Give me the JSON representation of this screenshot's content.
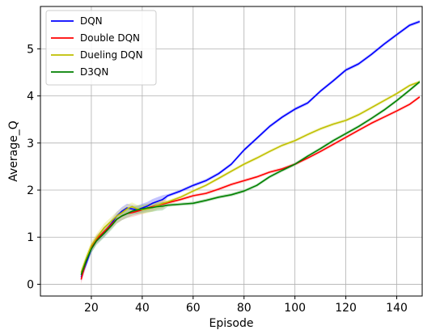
{
  "chart_data": {
    "type": "line",
    "title": "",
    "xlabel": "Episode",
    "ylabel": "Average_Q",
    "xlim": [
      0,
      150
    ],
    "ylim": [
      -0.25,
      5.9
    ],
    "xticks": [
      20,
      40,
      60,
      80,
      100,
      120,
      140
    ],
    "yticks": [
      0,
      1,
      2,
      3,
      4,
      5
    ],
    "grid": true,
    "legend_position": "top-left",
    "series": [
      {
        "name": "DQN",
        "color": "#0000ff",
        "band_color": "#7d7dff",
        "x": [
          16,
          18,
          20,
          22,
          25,
          28,
          30,
          32,
          34,
          36,
          38,
          40,
          42,
          44,
          46,
          48,
          50,
          55,
          60,
          65,
          70,
          75,
          80,
          85,
          90,
          95,
          100,
          105,
          110,
          115,
          120,
          125,
          130,
          135,
          140,
          145,
          149
        ],
        "y": [
          0.15,
          0.45,
          0.75,
          0.95,
          1.1,
          1.3,
          1.45,
          1.55,
          1.62,
          1.6,
          1.58,
          1.62,
          1.66,
          1.72,
          1.76,
          1.8,
          1.88,
          1.98,
          2.1,
          2.2,
          2.35,
          2.55,
          2.85,
          3.1,
          3.35,
          3.55,
          3.72,
          3.85,
          4.1,
          4.32,
          4.55,
          4.68,
          4.88,
          5.1,
          5.3,
          5.5,
          5.58
        ]
      },
      {
        "name": "Double DQN",
        "color": "#ff0000",
        "band_color": "#ff9d9d",
        "x": [
          16,
          18,
          20,
          22,
          25,
          28,
          30,
          32,
          34,
          36,
          38,
          40,
          42,
          44,
          46,
          48,
          50,
          55,
          60,
          65,
          70,
          75,
          80,
          85,
          90,
          95,
          100,
          105,
          110,
          115,
          120,
          125,
          130,
          135,
          140,
          145,
          149
        ],
        "y": [
          0.1,
          0.5,
          0.78,
          0.95,
          1.12,
          1.28,
          1.38,
          1.45,
          1.5,
          1.52,
          1.55,
          1.58,
          1.62,
          1.65,
          1.68,
          1.7,
          1.73,
          1.8,
          1.88,
          1.93,
          2.02,
          2.12,
          2.2,
          2.28,
          2.38,
          2.45,
          2.55,
          2.68,
          2.82,
          2.97,
          3.12,
          3.27,
          3.42,
          3.55,
          3.68,
          3.82,
          3.98
        ]
      },
      {
        "name": "Dueling DQN",
        "color": "#bfbf00",
        "band_color": "#e6e680",
        "x": [
          16,
          18,
          20,
          22,
          25,
          28,
          30,
          32,
          34,
          36,
          38,
          40,
          42,
          44,
          46,
          48,
          50,
          55,
          60,
          65,
          70,
          75,
          80,
          85,
          90,
          95,
          100,
          105,
          110,
          115,
          120,
          125,
          130,
          135,
          140,
          145,
          149
        ],
        "y": [
          0.25,
          0.55,
          0.82,
          0.98,
          1.2,
          1.35,
          1.45,
          1.52,
          1.6,
          1.65,
          1.6,
          1.58,
          1.6,
          1.63,
          1.68,
          1.72,
          1.75,
          1.85,
          1.98,
          2.1,
          2.25,
          2.4,
          2.55,
          2.68,
          2.82,
          2.95,
          3.05,
          3.18,
          3.3,
          3.4,
          3.48,
          3.6,
          3.75,
          3.9,
          4.05,
          4.22,
          4.3
        ]
      },
      {
        "name": "D3QN",
        "color": "#008000",
        "band_color": "#80c080",
        "x": [
          16,
          18,
          20,
          22,
          25,
          28,
          30,
          32,
          34,
          36,
          38,
          40,
          42,
          44,
          46,
          48,
          50,
          55,
          60,
          65,
          70,
          75,
          80,
          85,
          90,
          95,
          100,
          105,
          110,
          115,
          120,
          125,
          130,
          135,
          140,
          145,
          149
        ],
        "y": [
          0.2,
          0.5,
          0.75,
          0.92,
          1.08,
          1.25,
          1.38,
          1.45,
          1.5,
          1.55,
          1.58,
          1.6,
          1.62,
          1.63,
          1.65,
          1.66,
          1.68,
          1.7,
          1.72,
          1.78,
          1.85,
          1.9,
          1.98,
          2.1,
          2.28,
          2.42,
          2.55,
          2.72,
          2.88,
          3.05,
          3.2,
          3.35,
          3.52,
          3.7,
          3.9,
          4.12,
          4.3
        ]
      }
    ]
  }
}
